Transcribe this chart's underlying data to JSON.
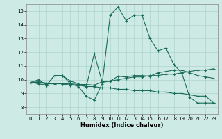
{
  "xlabel": "Humidex (Indice chaleur)",
  "xlim": [
    -0.5,
    23.5
  ],
  "ylim": [
    7.5,
    15.5
  ],
  "yticks": [
    8,
    9,
    10,
    11,
    12,
    13,
    14,
    15
  ],
  "xticks": [
    0,
    1,
    2,
    3,
    4,
    5,
    6,
    7,
    8,
    9,
    10,
    11,
    12,
    13,
    14,
    15,
    16,
    17,
    18,
    19,
    20,
    21,
    22,
    23
  ],
  "bg_color": "#ceeae4",
  "grid_color": "#aed4cc",
  "line_color": "#1a6b5a",
  "lines": [
    {
      "x": [
        0,
        1,
        2,
        3,
        4,
        5,
        6,
        7,
        8,
        9,
        10,
        11,
        12,
        13,
        14,
        15,
        16,
        17,
        18,
        19,
        20,
        21,
        22,
        23
      ],
      "y": [
        9.8,
        10.0,
        9.6,
        10.3,
        10.3,
        9.7,
        9.5,
        8.8,
        8.5,
        9.7,
        14.7,
        15.3,
        14.3,
        14.7,
        14.7,
        13.0,
        12.1,
        12.3,
        11.1,
        10.5,
        8.7,
        8.3,
        8.3,
        8.3
      ]
    },
    {
      "x": [
        0,
        1,
        2,
        3,
        4,
        5,
        6,
        7,
        8,
        9,
        10,
        11,
        12,
        13,
        14,
        15,
        16,
        17,
        18,
        19,
        20,
        21,
        22,
        23
      ],
      "y": [
        9.8,
        9.7,
        9.6,
        10.3,
        10.3,
        9.9,
        9.7,
        9.5,
        11.9,
        9.8,
        9.9,
        10.0,
        10.1,
        10.2,
        10.2,
        10.3,
        10.3,
        10.4,
        10.4,
        10.5,
        10.6,
        10.7,
        10.7,
        10.8
      ]
    },
    {
      "x": [
        0,
        1,
        2,
        3,
        4,
        5,
        6,
        7,
        8,
        9,
        10,
        11,
        12,
        13,
        14,
        15,
        16,
        17,
        18,
        19,
        20,
        21,
        22,
        23
      ],
      "y": [
        9.8,
        9.8,
        9.7,
        9.7,
        9.7,
        9.6,
        9.6,
        9.5,
        9.5,
        9.4,
        9.4,
        9.3,
        9.3,
        9.2,
        9.2,
        9.2,
        9.1,
        9.1,
        9.0,
        9.0,
        8.9,
        8.8,
        8.8,
        8.3
      ]
    },
    {
      "x": [
        0,
        1,
        2,
        3,
        4,
        5,
        6,
        7,
        8,
        9,
        10,
        11,
        12,
        13,
        14,
        15,
        16,
        17,
        18,
        19,
        20,
        21,
        22,
        23
      ],
      "y": [
        9.8,
        9.85,
        9.75,
        9.75,
        9.7,
        9.7,
        9.65,
        9.65,
        9.6,
        9.85,
        9.9,
        10.25,
        10.2,
        10.3,
        10.3,
        10.25,
        10.5,
        10.6,
        10.7,
        10.7,
        10.5,
        10.3,
        10.2,
        10.1
      ]
    }
  ]
}
